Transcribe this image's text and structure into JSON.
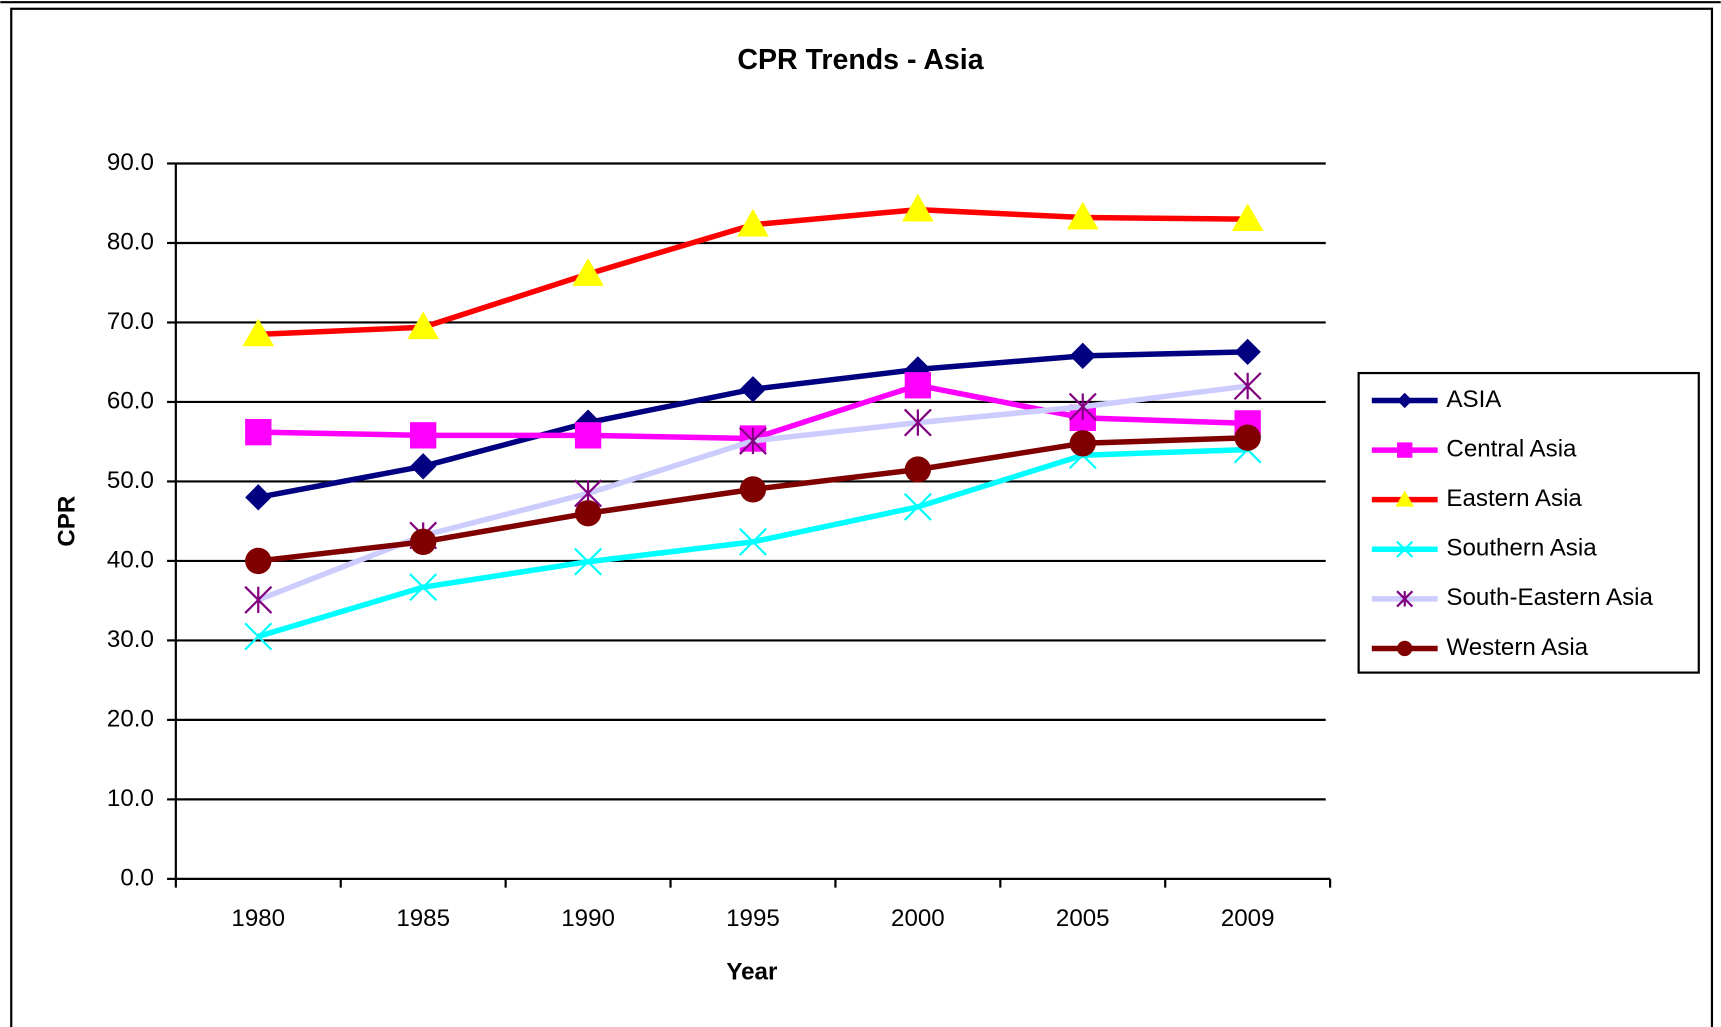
{
  "chart_data": {
    "type": "line",
    "title": "CPR Trends - Asia",
    "x_label": "Year",
    "y_label": "CPR",
    "categories": [
      "1980",
      "1985",
      "1990",
      "1995",
      "2000",
      "2005",
      "2009"
    ],
    "series": [
      {
        "name": "ASIA",
        "color": "#000080",
        "marker": "diamond",
        "marker_color": "#000080",
        "values": [
          48.0,
          51.9,
          57.4,
          61.6,
          64.1,
          65.8,
          66.3
        ]
      },
      {
        "name": "Central Asia",
        "color": "#ff00ff",
        "marker": "square",
        "marker_color": "#ff00ff",
        "values": [
          56.2,
          55.8,
          55.8,
          55.4,
          62.1,
          58.0,
          57.3
        ]
      },
      {
        "name": "Eastern Asia",
        "color": "#ff0000",
        "marker": "triangle",
        "marker_color": "#ffff00",
        "values": [
          68.5,
          69.4,
          76.1,
          82.3,
          84.2,
          83.2,
          83.0
        ]
      },
      {
        "name": "Southern Asia",
        "color": "#00ffff",
        "marker": "x",
        "marker_color": "#00ffff",
        "values": [
          30.5,
          36.7,
          39.9,
          42.4,
          46.8,
          53.3,
          54.0
        ]
      },
      {
        "name": "South-Eastern Asia",
        "color": "#ccccff",
        "marker": "asterisk",
        "marker_color": "#800080",
        "values": [
          35.1,
          43.2,
          48.5,
          55.1,
          57.4,
          59.4,
          62.0
        ]
      },
      {
        "name": "Western Asia",
        "color": "#800000",
        "marker": "circle",
        "marker_color": "#800000",
        "values": [
          40.0,
          42.4,
          46.0,
          49.0,
          51.5,
          54.8,
          55.5
        ]
      }
    ],
    "ylim": [
      0,
      90
    ],
    "yticks": [
      {
        "value": 0,
        "label": "0.0"
      },
      {
        "value": 10,
        "label": "10.0"
      },
      {
        "value": 20,
        "label": "20.0"
      },
      {
        "value": 30,
        "label": "30.0"
      },
      {
        "value": 40,
        "label": "40.0"
      },
      {
        "value": 50,
        "label": "50.0"
      },
      {
        "value": 60,
        "label": "60.0"
      },
      {
        "value": 70,
        "label": "70.0"
      },
      {
        "value": 80,
        "label": "80.0"
      },
      {
        "value": 90,
        "label": "90.0"
      }
    ],
    "grid": true,
    "legend": "right"
  }
}
